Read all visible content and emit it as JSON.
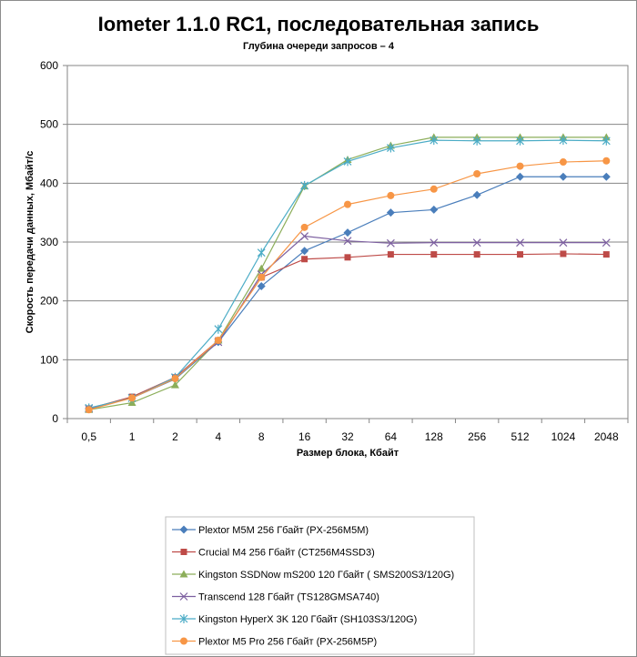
{
  "chart_data": {
    "type": "line",
    "title": "Iometer 1.1.0 RC1, последовательная запись",
    "subtitle": "Глубина очереди запросов – 4",
    "xlabel": "Размер блока, Кбайт",
    "ylabel": "Скорость передачи данных, Мбайт/с",
    "ylim": [
      0,
      600
    ],
    "yticks": [
      "0",
      "100",
      "200",
      "300",
      "400",
      "500",
      "600"
    ],
    "categories": [
      "0,5",
      "1",
      "2",
      "4",
      "8",
      "16",
      "32",
      "64",
      "128",
      "256",
      "512",
      "1024",
      "2048"
    ],
    "grid": true,
    "legend_position": "bottom",
    "series": [
      {
        "name": "Plextor M5M 256 Гбайт (PX-256M5M)",
        "color": "#4a7ebb",
        "marker": "diamond",
        "values": [
          17,
          35,
          67,
          130,
          225,
          285,
          316,
          350,
          355,
          380,
          411,
          411,
          411
        ]
      },
      {
        "name": "Crucial M4 256 Гбайт (CT256M4SSD3)",
        "color": "#be4b48",
        "marker": "square",
        "values": [
          17,
          37,
          70,
          133,
          240,
          271,
          274,
          279,
          279,
          279,
          279,
          280,
          279
        ]
      },
      {
        "name": "Kingston SSDNow  mS200 120 Гбайт ( SMS200S3/120G)",
        "color": "#8cae5a",
        "marker": "triangle",
        "values": [
          15,
          27,
          57,
          133,
          255,
          395,
          440,
          464,
          478,
          478,
          478,
          478,
          478
        ]
      },
      {
        "name": "Transcend 128 Гбайт (TS128GMSA740)",
        "color": "#7d60a0",
        "marker": "x",
        "values": [
          17,
          35,
          70,
          130,
          245,
          310,
          302,
          298,
          299,
          299,
          299,
          299,
          299
        ]
      },
      {
        "name": "Kingston HyperX  3K 120 Гбайт (SH103S3/120G)",
        "color": "#4bacc6",
        "marker": "star",
        "values": [
          18,
          35,
          70,
          152,
          282,
          396,
          437,
          460,
          473,
          472,
          472,
          473,
          472
        ]
      },
      {
        "name": "Plextor M5 Pro 256 Гбайт (PX-256M5P)",
        "color": "#f79646",
        "marker": "circle",
        "values": [
          15,
          35,
          68,
          133,
          240,
          325,
          364,
          379,
          390,
          416,
          429,
          436,
          438
        ]
      }
    ]
  }
}
